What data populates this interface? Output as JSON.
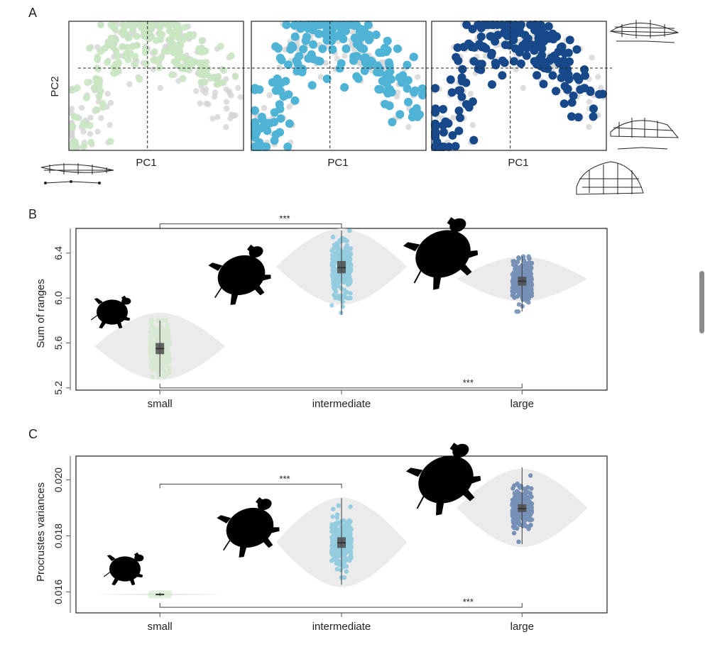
{
  "panel_labels": [
    "A",
    "B",
    "C"
  ],
  "chart_data": [
    {
      "type": "scatter",
      "panel": "A",
      "xlabel": "PC1",
      "ylabel": "PC2",
      "subplots": [
        {
          "group": "small",
          "color": "#c8e6c1"
        },
        {
          "group": "intermediate",
          "color": "#4fb3d6"
        },
        {
          "group": "large",
          "color": "#17498a"
        }
      ],
      "background_color": "#d4d4d4"
    },
    {
      "type": "violin",
      "panel": "B",
      "ylabel": "Sum of ranges",
      "categories": [
        "small",
        "intermediate",
        "large"
      ],
      "yticks": [
        "5.2",
        "5.6",
        "6.0",
        "6.4"
      ],
      "ylim": [
        5.18,
        6.62
      ],
      "colors": [
        "#c8e6c1",
        "#4fb3d6",
        "#17498a"
      ],
      "series": [
        {
          "name": "small",
          "median": 5.55,
          "q1": 5.5,
          "q3": 5.6,
          "min": 5.3,
          "max": 5.8,
          "violin_center": 5.57,
          "violin_half_range": 0.3
        },
        {
          "name": "intermediate",
          "median": 6.27,
          "q1": 6.22,
          "q3": 6.33,
          "min": 5.85,
          "max": 6.6,
          "violin_center": 6.28,
          "violin_half_range": 0.34
        },
        {
          "name": "large",
          "median": 6.15,
          "q1": 6.11,
          "q3": 6.19,
          "min": 5.88,
          "max": 6.37,
          "violin_center": 6.17,
          "violin_half_range": 0.2
        }
      ],
      "significance": [
        {
          "from": "small",
          "to": "intermediate",
          "label": "***",
          "level": 6.66
        },
        {
          "from": "small",
          "to": "large",
          "label": "***",
          "level": 5.2
        }
      ]
    },
    {
      "type": "violin",
      "panel": "C",
      "ylabel": "Procrustes variances",
      "categories": [
        "small",
        "intermediate",
        "large"
      ],
      "yticks": [
        "0.016",
        "0.018",
        "0.020"
      ],
      "ylim": [
        0.01525,
        0.02085
      ],
      "colors": [
        "#c8e6c1",
        "#4fb3d6",
        "#17498a"
      ],
      "series": [
        {
          "name": "small",
          "median": 0.01591,
          "q1": 0.01589,
          "q3": 0.01593,
          "min": 0.01585,
          "max": 0.01597,
          "violin_center": 0.01591,
          "violin_half_range": 3e-05
        },
        {
          "name": "intermediate",
          "median": 0.01775,
          "q1": 0.01757,
          "q3": 0.01795,
          "min": 0.01625,
          "max": 0.01935,
          "violin_center": 0.01777,
          "violin_half_range": 0.0016
        },
        {
          "name": "large",
          "median": 0.01897,
          "q1": 0.01885,
          "q3": 0.01913,
          "min": 0.0177,
          "max": 0.02045,
          "violin_center": 0.019,
          "violin_half_range": 0.0014
        }
      ],
      "significance": [
        {
          "from": "small",
          "to": "intermediate",
          "label": "***",
          "level": 0.01985
        },
        {
          "from": "small",
          "to": "large",
          "label": "***",
          "level": 0.01545
        }
      ]
    }
  ]
}
